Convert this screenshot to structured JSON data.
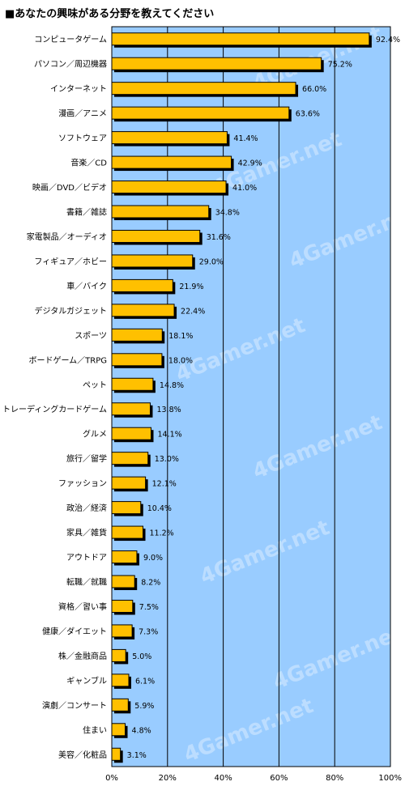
{
  "chart_data": {
    "type": "bar",
    "orientation": "horizontal",
    "title": "■あなたの興味がある分野を教えてください",
    "categories": [
      "コンピュータゲーム",
      "パソコン／周辺機器",
      "インターネット",
      "漫画／アニメ",
      "ソフトウェア",
      "音楽／CD",
      "映画／DVD／ビデオ",
      "書籍／雑誌",
      "家電製品／オーディオ",
      "フィギュア／ホビー",
      "車／バイク",
      "デジタルガジェット",
      "スポーツ",
      "ボードゲーム／TRPG",
      "ペット",
      "トレーディングカードゲーム",
      "グルメ",
      "旅行／留学",
      "ファッション",
      "政治／経済",
      "家具／雑貨",
      "アウトドア",
      "転職／就職",
      "資格／習い事",
      "健康／ダイエット",
      "株／金融商品",
      "ギャンブル",
      "演劇／コンサート",
      "住まい",
      "美容／化粧品"
    ],
    "values": [
      92.4,
      75.2,
      66.0,
      63.6,
      41.4,
      42.9,
      41.0,
      34.8,
      31.6,
      29.0,
      21.9,
      22.4,
      18.1,
      18.0,
      14.8,
      13.8,
      14.1,
      13.0,
      12.1,
      10.4,
      11.2,
      9.0,
      8.2,
      7.5,
      7.3,
      5.0,
      6.1,
      5.9,
      4.8,
      3.1
    ],
    "value_labels": [
      "92.4%",
      "75.2%",
      "66.0%",
      "63.6%",
      "41.4%",
      "42.9%",
      "41.0%",
      "34.8%",
      "31.6%",
      "29.0%",
      "21.9%",
      "22.4%",
      "18.1%",
      "18.0%",
      "14.8%",
      "13.8%",
      "14.1%",
      "13.0%",
      "12.1%",
      "10.4%",
      "11.2%",
      "9.0%",
      "8.2%",
      "7.5%",
      "7.3%",
      "5.0%",
      "6.1%",
      "5.9%",
      "4.8%",
      "3.1%"
    ],
    "x_ticks": [
      "0%",
      "20%",
      "40%",
      "60%",
      "80%",
      "100%"
    ],
    "xlim": [
      0,
      100
    ],
    "grid": true,
    "watermark": "4Gamer.net",
    "colors": {
      "plot_background": "#99ccff",
      "bar_fill": "#ffc000",
      "bar_shadow": "#000000",
      "gridline": "#000000"
    }
  }
}
